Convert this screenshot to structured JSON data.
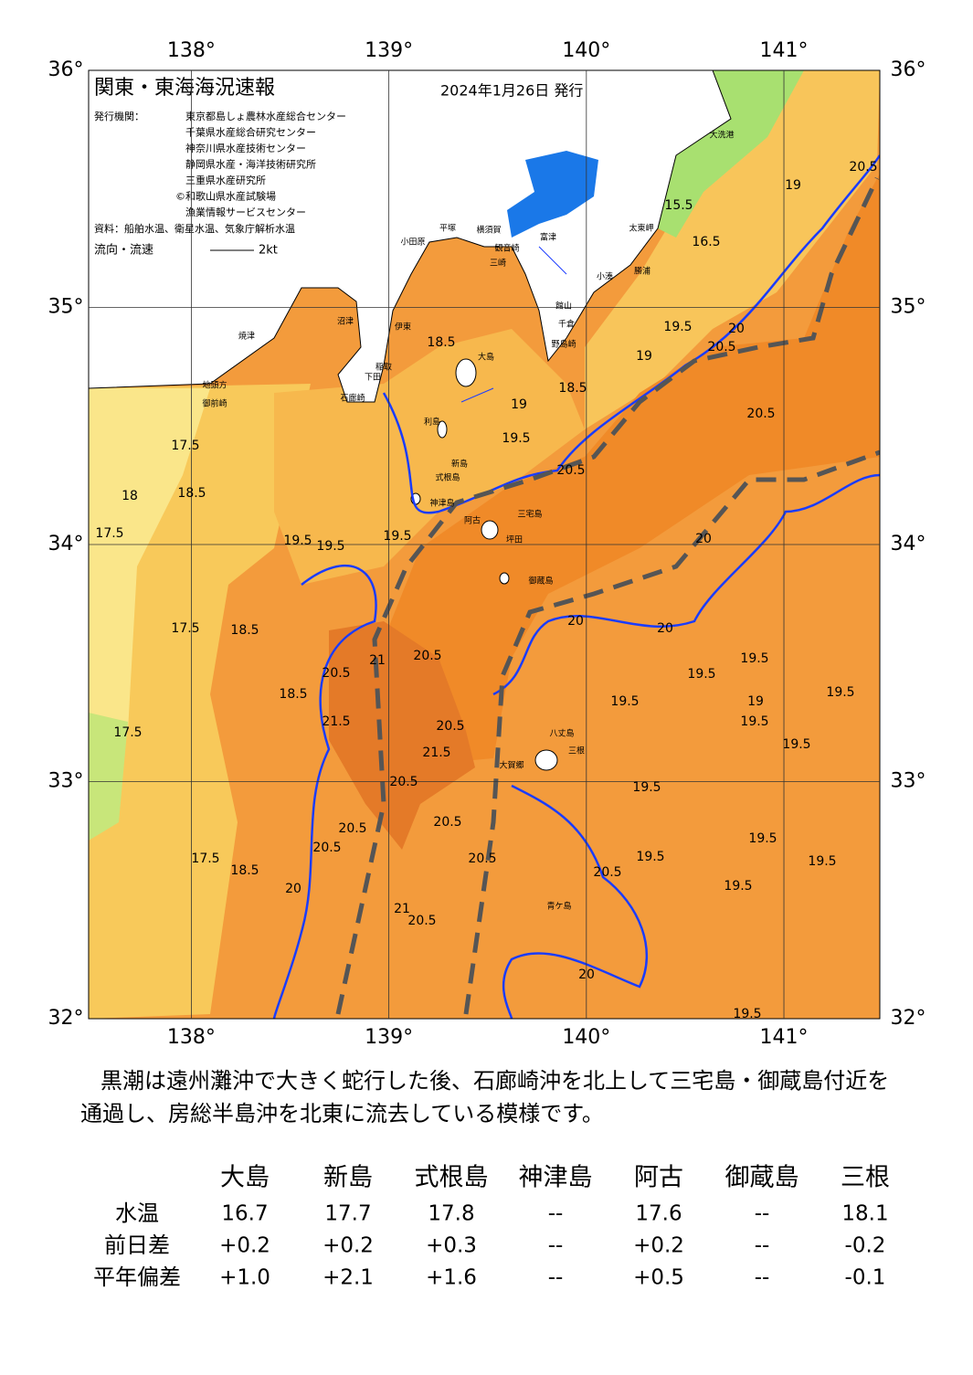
{
  "map": {
    "title": "関東・東海海況速報",
    "date": "2024年1月26日 発行",
    "issuers_label": "発行機関：",
    "issuers": [
      "東京都島しょ農林水産総合センター",
      "千葉県水産総合研究センター",
      "神奈川県水産技術センター",
      "静岡県水産・海洋技術研究所",
      "三重県水産研究所",
      "©和歌山県水産試験場",
      "漁業情報サービスセンター"
    ],
    "source": "資料：船舶水温、衛星水温、気象庁解析水温",
    "flow_label": "流向・流速",
    "flow_scale": "2kt",
    "lon_ticks": [
      {
        "value": 138,
        "label": "138°"
      },
      {
        "value": 139,
        "label": "139°"
      },
      {
        "value": 140,
        "label": "140°"
      },
      {
        "value": 141,
        "label": "141°"
      }
    ],
    "lat_ticks": [
      {
        "value": 36,
        "label": "36°"
      },
      {
        "value": 35,
        "label": "35°"
      },
      {
        "value": 34,
        "label": "34°"
      },
      {
        "value": 33,
        "label": "33°"
      },
      {
        "value": 32,
        "label": "32°"
      }
    ],
    "place_names": [
      "大洗港",
      "太東岬",
      "勝浦",
      "小湊",
      "館山",
      "千倉",
      "野島崎",
      "富津",
      "横須賀",
      "平塚",
      "小田原",
      "観音崎",
      "三崎",
      "沼津",
      "伊東",
      "稲取",
      "下田",
      "石廊崎",
      "焼津",
      "地頭方",
      "御前崎",
      "大島",
      "利島",
      "新島",
      "式根島",
      "神津島",
      "三宅島",
      "阿古",
      "坪田",
      "御蔵島",
      "八丈島",
      "三根",
      "大賀郷",
      "青ケ島"
    ],
    "contour_labels": [
      "18.5",
      "18.5",
      "19",
      "19.5",
      "19",
      "19.5",
      "20",
      "20.5",
      "20.5",
      "20.5",
      "19",
      "15.5",
      "16.5",
      "17.5",
      "18.5",
      "18",
      "17.5",
      "19.5",
      "19.5",
      "19.5",
      "17.5",
      "18.5",
      "18.5",
      "20.5",
      "21",
      "20.5",
      "21.5",
      "21.5",
      "20.5",
      "20.5",
      "19.5",
      "19.5",
      "19.5",
      "19",
      "19.5",
      "19.5",
      "19.5",
      "19.5",
      "19.5",
      "19.5",
      "19.5",
      "20.5",
      "19.5",
      "20.5",
      "20.5",
      "20.5",
      "20.5",
      "20.5",
      "21",
      "20",
      "17.5",
      "17.5",
      "18.5",
      "20",
      "19.5",
      "20.5",
      "20",
      "20",
      "20"
    ]
  },
  "description": "黒潮は遠州灘沖で大きく蛇行した後、石廊崎沖を北上して三宅島・御蔵島付近を通過し、房総半島沖を北東に流去している模様です。",
  "table": {
    "columns": [
      "大島",
      "新島",
      "式根島",
      "神津島",
      "阿古",
      "御蔵島",
      "三根"
    ],
    "rows": [
      {
        "label": "水温",
        "cells": [
          "16.7",
          "17.7",
          "17.8",
          "--",
          "17.6",
          "--",
          "18.1"
        ]
      },
      {
        "label": "前日差",
        "cells": [
          "+0.2",
          "+0.2",
          "+0.3",
          "--",
          "+0.2",
          "--",
          "-0.2"
        ]
      },
      {
        "label": "平年偏差",
        "cells": [
          "+1.0",
          "+2.1",
          "+1.6",
          "--",
          "+0.5",
          "--",
          "-0.1"
        ]
      }
    ]
  }
}
